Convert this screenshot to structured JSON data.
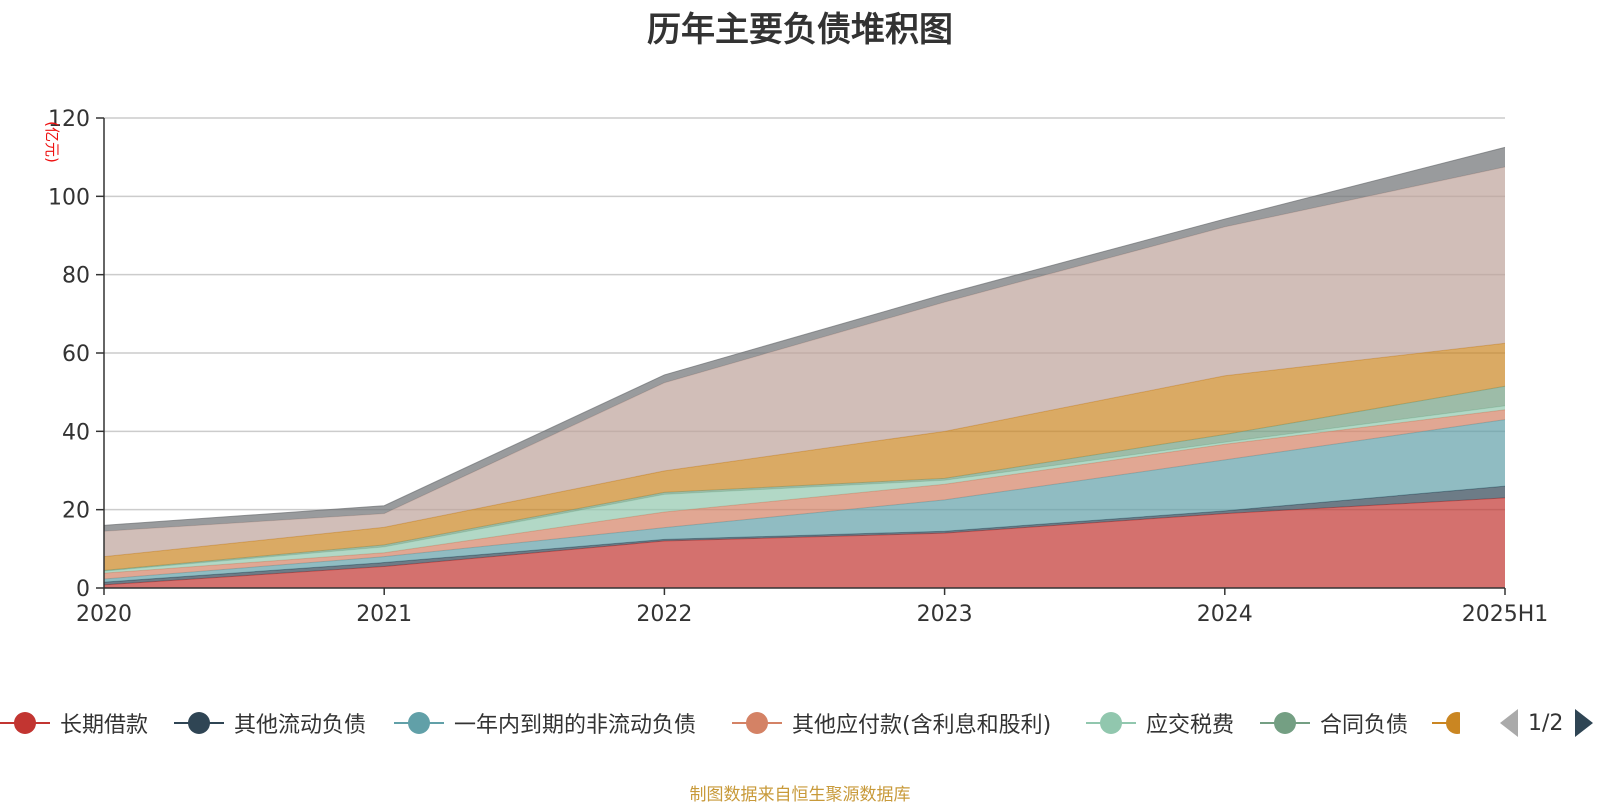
{
  "chart_data": {
    "type": "area",
    "stacked": true,
    "title": "历年主要负债堆积图",
    "unit": "(亿元)",
    "x": [
      "2020",
      "2021",
      "2022",
      "2023",
      "2024",
      "2025H1"
    ],
    "ylim": [
      0,
      120
    ],
    "yticks": [
      0,
      20,
      40,
      60,
      80,
      100,
      120
    ],
    "grid": true,
    "legend_position": "bottom",
    "series": [
      {
        "name": "长期借款",
        "color": "#c23531",
        "values": [
          0.8,
          5.5,
          12.0,
          14.0,
          19.0,
          23.0
        ]
      },
      {
        "name": "其他流动负债",
        "color": "#2f4554",
        "values": [
          0.7,
          1.0,
          0.4,
          0.5,
          0.7,
          3.0
        ]
      },
      {
        "name": "一年内到期的非流动负债",
        "color": "#61a0a8",
        "values": [
          0.8,
          1.5,
          3.0,
          8.0,
          13.0,
          17.0
        ]
      },
      {
        "name": "其他应付款(含利息和股利)",
        "color": "#d48265",
        "values": [
          1.5,
          1.0,
          4.0,
          4.0,
          4.0,
          2.5
        ]
      },
      {
        "name": "应交税费",
        "color": "#91c7ae",
        "values": [
          0.5,
          1.5,
          4.5,
          1.0,
          0.5,
          1.0
        ]
      },
      {
        "name": "合同负债",
        "color": "#749f83",
        "values": [
          0.2,
          0.5,
          0.5,
          0.5,
          2.0,
          5.0
        ]
      },
      {
        "name": "",
        "color": "#ca8622",
        "values": [
          3.5,
          4.5,
          5.5,
          12.0,
          15.0,
          11.0
        ]
      },
      {
        "name": "",
        "color": "#bda29a",
        "values": [
          6.5,
          3.5,
          22.5,
          33.0,
          38.0,
          45.0
        ]
      },
      {
        "name": "",
        "color": "#6e7074",
        "values": [
          1.5,
          2.0,
          2.0,
          2.0,
          2.0,
          5.0
        ]
      }
    ]
  },
  "legend": {
    "page": "1/2"
  },
  "source": "制图数据来自恒生聚源数据库"
}
